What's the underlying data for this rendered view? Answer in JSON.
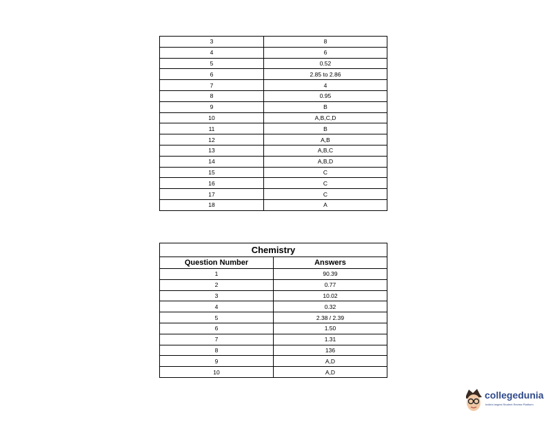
{
  "table1": {
    "rows": [
      [
        "3",
        "8"
      ],
      [
        "4",
        "6"
      ],
      [
        "5",
        "0.52"
      ],
      [
        "6",
        "2.85 to 2.86"
      ],
      [
        "7",
        "4"
      ],
      [
        "8",
        "0.95"
      ],
      [
        "9",
        "B"
      ],
      [
        "10",
        "A,B,C,D"
      ],
      [
        "11",
        "B"
      ],
      [
        "12",
        "A,B"
      ],
      [
        "13",
        "A,B,C"
      ],
      [
        "14",
        "A,B,D"
      ],
      [
        "15",
        "C"
      ],
      [
        "16",
        "C"
      ],
      [
        "17",
        "C"
      ],
      [
        "18",
        "A"
      ]
    ]
  },
  "table2": {
    "title": "Chemistry",
    "headers": [
      "Question Number",
      "Answers"
    ],
    "rows": [
      [
        "1",
        "90.39"
      ],
      [
        "2",
        "0.77"
      ],
      [
        "3",
        "10.02"
      ],
      [
        "4",
        "0.32"
      ],
      [
        "5",
        "2.38 / 2.39"
      ],
      [
        "6",
        "1.50"
      ],
      [
        "7",
        "1.31"
      ],
      [
        "8",
        "136"
      ],
      [
        "9",
        "A,D"
      ],
      [
        "10",
        "A,D"
      ]
    ]
  },
  "logo": {
    "name": "collegedunia",
    "tagline": "India's largest Student Review Platform",
    "color": "#2f4a8a"
  }
}
